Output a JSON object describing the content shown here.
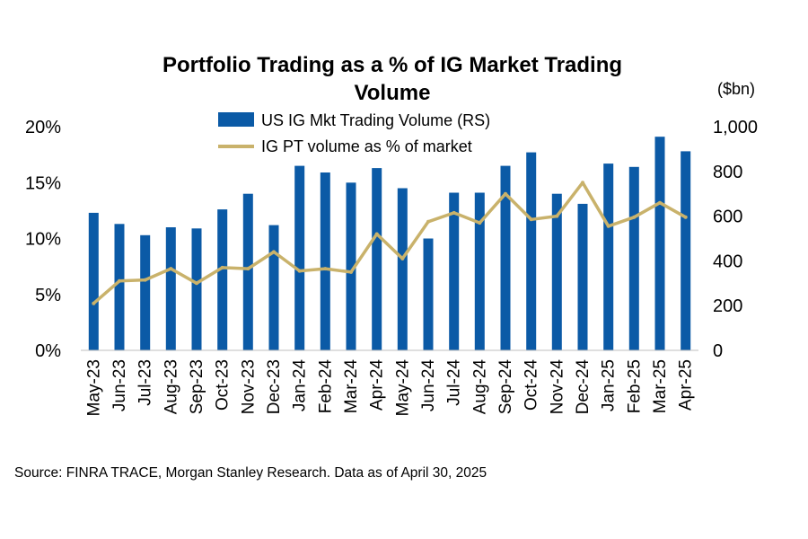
{
  "chart_data": {
    "type": "bar+line",
    "title": "Portfolio Trading as a % of IG Market Trading Volume",
    "right_axis_unit": "($bn)",
    "categories": [
      "May-23",
      "Jun-23",
      "Jul-23",
      "Aug-23",
      "Sep-23",
      "Oct-23",
      "Nov-23",
      "Dec-23",
      "Jan-24",
      "Feb-24",
      "Mar-24",
      "Apr-24",
      "May-24",
      "Jun-24",
      "Jul-24",
      "Aug-24",
      "Sep-24",
      "Oct-24",
      "Nov-24",
      "Dec-24",
      "Jan-25",
      "Feb-25",
      "Mar-25",
      "Apr-25"
    ],
    "series": [
      {
        "name": "US IG Mkt Trading Volume (RS)",
        "type": "bar",
        "axis": "right",
        "color": "#0b5aa6",
        "values": [
          615,
          565,
          515,
          550,
          545,
          630,
          700,
          560,
          825,
          795,
          750,
          815,
          725,
          500,
          705,
          705,
          825,
          885,
          700,
          655,
          835,
          820,
          955,
          890
        ]
      },
      {
        "name": "IG PT volume as % of market",
        "type": "line",
        "axis": "left",
        "color": "#c9b26b",
        "values": [
          4.2,
          6.2,
          6.3,
          7.3,
          6.0,
          7.4,
          7.3,
          8.8,
          7.1,
          7.3,
          7.0,
          10.4,
          8.2,
          11.5,
          12.3,
          11.4,
          14.0,
          11.7,
          12.0,
          15.0,
          11.1,
          11.9,
          13.2,
          11.9
        ]
      }
    ],
    "left_axis": {
      "ylim": [
        0,
        20
      ],
      "ticks": [
        0,
        5,
        10,
        15,
        20
      ],
      "tick_labels": [
        "0%",
        "5%",
        "10%",
        "15%",
        "20%"
      ]
    },
    "right_axis": {
      "ylim": [
        0,
        1000
      ],
      "ticks": [
        0,
        200,
        400,
        600,
        800,
        1000
      ],
      "tick_labels": [
        "0",
        "200",
        "400",
        "600",
        "800",
        "1,000"
      ]
    },
    "legend_position": "top-center",
    "grid": false
  },
  "footer": {
    "source": "Source: FINRA TRACE, Morgan Stanley Research. Data as of April 30, 2025"
  }
}
